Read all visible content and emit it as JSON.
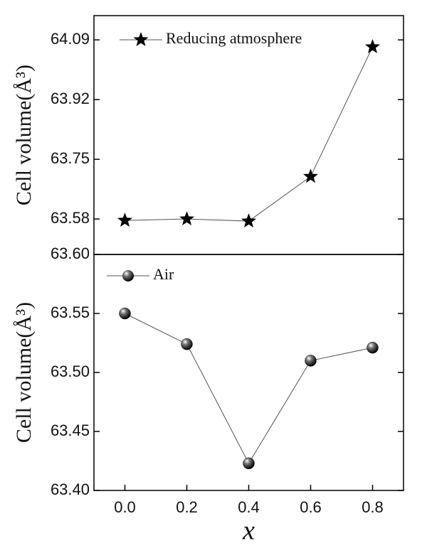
{
  "chart_data": [
    {
      "type": "line",
      "marker": "star",
      "x": [
        0,
        0.2,
        0.4,
        0.6,
        0.8
      ],
      "series": [
        {
          "name": "Reducing atmosphere",
          "color": "#000000",
          "values": [
            63.576,
            63.58,
            63.574,
            63.701,
            64.07
          ]
        }
      ],
      "ylabel": "Cell volume(Å³)",
      "xlim": [
        -0.1,
        0.9
      ],
      "ylim": [
        63.479,
        64.159
      ],
      "yticks": [
        63.58,
        63.75,
        63.92,
        64.09
      ]
    },
    {
      "type": "line",
      "marker": "sphere",
      "x": [
        0,
        0.2,
        0.4,
        0.6,
        0.8
      ],
      "series": [
        {
          "name": "Air",
          "color": "#000000",
          "values": [
            63.55,
            63.524,
            63.423,
            63.51,
            63.521
          ]
        }
      ],
      "ylabel": "Cell volume(Å³)",
      "xlabel": "x",
      "xlim": [
        -0.1,
        0.9
      ],
      "ylim": [
        63.4,
        63.6
      ],
      "xticks": [
        {
          "value": 0,
          "label": "0.0"
        },
        0.2,
        0.4,
        0.6,
        0.8
      ],
      "yticks": [
        {
          "value": 63.4,
          "label": "63.40"
        },
        63.45,
        {
          "value": 63.5,
          "label": "63.50"
        },
        63.55,
        {
          "value": 63.6,
          "label": "63.60"
        }
      ]
    }
  ]
}
